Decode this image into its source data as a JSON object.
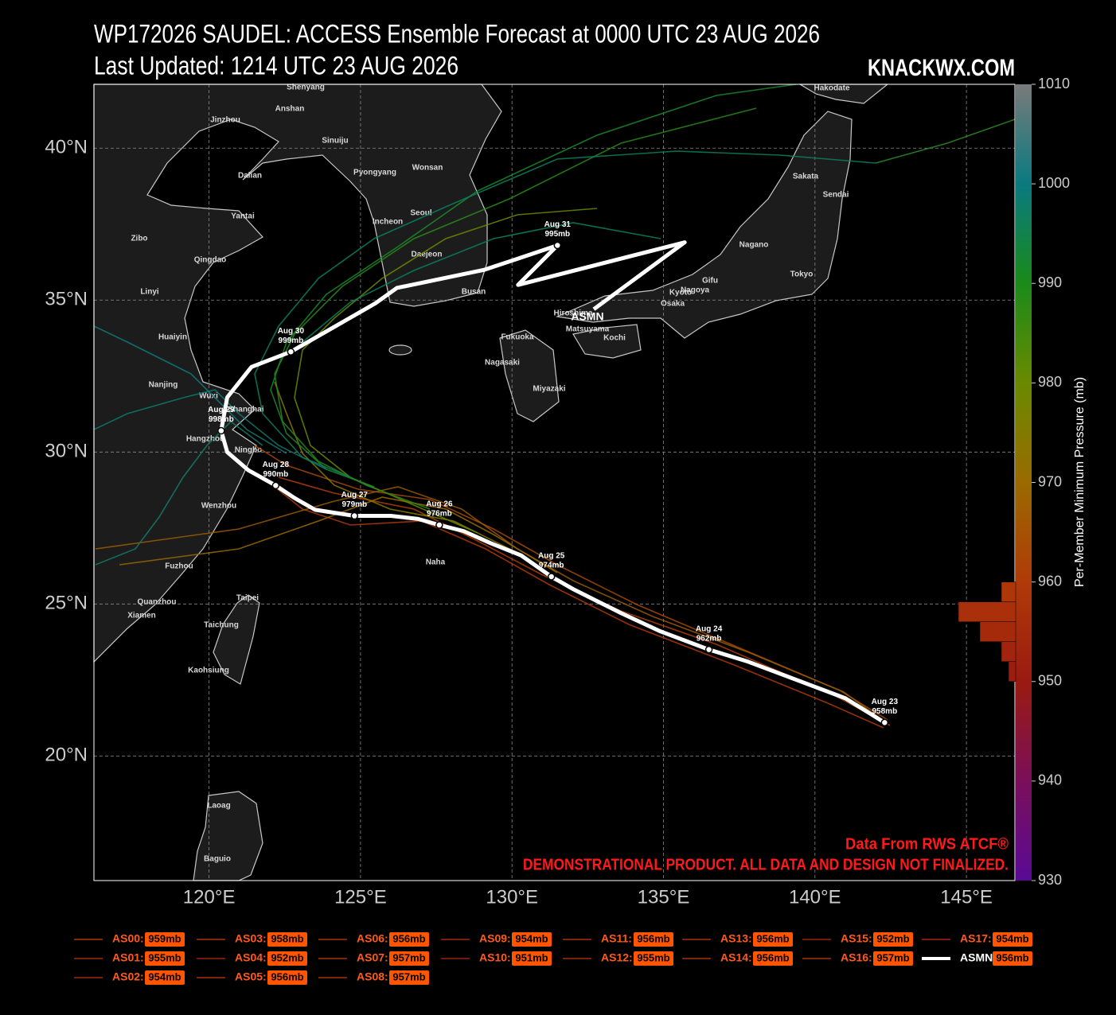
{
  "chart_data": {
    "type": "track-map",
    "title": "WP172026 SAUDEL: ACCESS Ensemble Forecast at 0000 UTC 23 AUG 2026",
    "subtitle": "Last Updated: 1214 UTC 23 AUG 2026",
    "brand": "KNACKWX.COM",
    "xlim": [
      116.2,
      146.6
    ],
    "ylim": [
      15.9,
      42.1
    ],
    "xticks": [
      {
        "value": 120,
        "label": "120°E"
      },
      {
        "value": 125,
        "label": "125°E"
      },
      {
        "value": 130,
        "label": "130°E"
      },
      {
        "value": 135,
        "label": "135°E"
      },
      {
        "value": 140,
        "label": "140°E"
      },
      {
        "value": 145,
        "label": "145°E"
      }
    ],
    "yticks": [
      {
        "value": 20,
        "label": "20°N"
      },
      {
        "value": 25,
        "label": "25°N"
      },
      {
        "value": 30,
        "label": "30°N"
      },
      {
        "value": 35,
        "label": "35°N"
      },
      {
        "value": 40,
        "label": "40°N"
      }
    ],
    "grid": true,
    "cities": [
      "Shenyang",
      "Anshan",
      "Jinzhou",
      "Sinuiju",
      "Dalian",
      "Pyongyang",
      "Wonsan",
      "Seoul",
      "Yantai",
      "Incheon",
      "Zibo",
      "Qingdao",
      "Daejeon",
      "Linyi",
      "Busan",
      "Huaiyin",
      "Nanjing",
      "Wuxi",
      "Shanghai",
      "Hangzhou",
      "Ningbo",
      "Wenzhou",
      "Fuzhou",
      "Quanzhou",
      "Xiamen",
      "Taipei",
      "Taichung",
      "Kaohsiung",
      "Laoag",
      "Baguio",
      "Fukuoka",
      "Nagasaki",
      "Miyazaki",
      "Hiroshima",
      "Matsuyama",
      "Kochi",
      "Osaka",
      "Kyoto",
      "Nagoya",
      "Gifu",
      "Nagano",
      "Tokyo",
      "Sendai",
      "Sakata",
      "Hakodate",
      "Naha"
    ],
    "mean_track": {
      "name": "ASMN",
      "color": "#ffffff",
      "lon": [
        142.3,
        141.0,
        137.8,
        136.5,
        134.9,
        133.6,
        132.0,
        131.3,
        130.3,
        129.3,
        128.4,
        127.6,
        126.9,
        126.0,
        124.8,
        123.5,
        122.8,
        122.2,
        121.3,
        120.6,
        120.4,
        120.6,
        121.4,
        122.7,
        124.1,
        125.5,
        126.2,
        129.1,
        131.5,
        130.2,
        135.7,
        132.7
      ],
      "lat": [
        21.1,
        21.9,
        23.1,
        23.5,
        24.1,
        24.7,
        25.5,
        25.9,
        26.6,
        27.0,
        27.4,
        27.6,
        27.8,
        27.9,
        27.9,
        28.1,
        28.5,
        28.9,
        29.4,
        30.0,
        30.7,
        31.8,
        32.8,
        33.3,
        34.1,
        34.9,
        35.4,
        36.0,
        36.8,
        35.5,
        36.9,
        34.7
      ]
    },
    "points": [
      {
        "date": "Aug 23",
        "pressure": "958mb",
        "lon": 142.3,
        "lat": 21.1
      },
      {
        "date": "Aug 24",
        "pressure": "962mb",
        "lon": 136.5,
        "lat": 23.5
      },
      {
        "date": "Aug 25",
        "pressure": "974mb",
        "lon": 131.3,
        "lat": 25.9
      },
      {
        "date": "Aug 26",
        "pressure": "976mb",
        "lon": 127.6,
        "lat": 27.6
      },
      {
        "date": "Aug 27",
        "pressure": "979mb",
        "lon": 124.8,
        "lat": 27.9
      },
      {
        "date": "Aug 28",
        "pressure": "990mb",
        "lon": 122.2,
        "lat": 28.9
      },
      {
        "date": "Aug 29",
        "pressure": "998mb",
        "lon": 120.4,
        "lat": 30.7
      },
      {
        "date": "Aug 30",
        "pressure": "999mb",
        "lon": 122.7,
        "lat": 33.3
      },
      {
        "date": "Aug 31",
        "pressure": "995mb",
        "lon": 131.5,
        "lat": 36.8
      }
    ],
    "colorbar": {
      "label": "Per-Member Minimum Pressure (mb)",
      "lim": [
        930,
        1010
      ],
      "ticks": [
        930,
        940,
        950,
        960,
        970,
        980,
        990,
        1000,
        1010
      ],
      "colors": [
        "#5a0a96",
        "#7a0f5a",
        "#9a1a10",
        "#b03a08",
        "#9a6a00",
        "#6a8a00",
        "#1a8a1a",
        "#0a7a80",
        "#7a7a7a"
      ],
      "histogram_bins": [
        950,
        952,
        954,
        956,
        958,
        960
      ]
    },
    "members": [
      {
        "name": "AS00:",
        "value": 959,
        "label": "959mb"
      },
      {
        "name": "AS01:",
        "value": 955,
        "label": "955mb"
      },
      {
        "name": "AS02:",
        "value": 954,
        "label": "954mb"
      },
      {
        "name": "AS03:",
        "value": 958,
        "label": "958mb"
      },
      {
        "name": "AS04:",
        "value": 952,
        "label": "952mb"
      },
      {
        "name": "AS05:",
        "value": 956,
        "label": "956mb"
      },
      {
        "name": "AS06:",
        "value": 956,
        "label": "956mb"
      },
      {
        "name": "AS07:",
        "value": 957,
        "label": "957mb"
      },
      {
        "name": "AS08:",
        "value": 957,
        "label": "957mb"
      },
      {
        "name": "AS09:",
        "value": 954,
        "label": "954mb"
      },
      {
        "name": "AS10:",
        "value": 951,
        "label": "951mb"
      },
      {
        "name": "AS11:",
        "value": 956,
        "label": "956mb"
      },
      {
        "name": "AS12:",
        "value": 955,
        "label": "955mb"
      },
      {
        "name": "AS13:",
        "value": 956,
        "label": "956mb"
      },
      {
        "name": "AS14:",
        "value": 956,
        "label": "956mb"
      },
      {
        "name": "AS15:",
        "value": 952,
        "label": "952mb"
      },
      {
        "name": "AS16:",
        "value": 957,
        "label": "957mb"
      },
      {
        "name": "AS17:",
        "value": 954,
        "label": "954mb"
      },
      {
        "name": "ASMN:",
        "value": 956,
        "label": "956mb"
      }
    ],
    "legend_text_color": "#ff5a1a",
    "label_box_color": "#ff5500",
    "notes": [
      "Data From RWS ATCF®",
      "DEMONSTRATIONAL PRODUCT. ALL DATA AND DESIGN NOT FINALIZED."
    ],
    "note_color": "#ff1a1a"
  }
}
